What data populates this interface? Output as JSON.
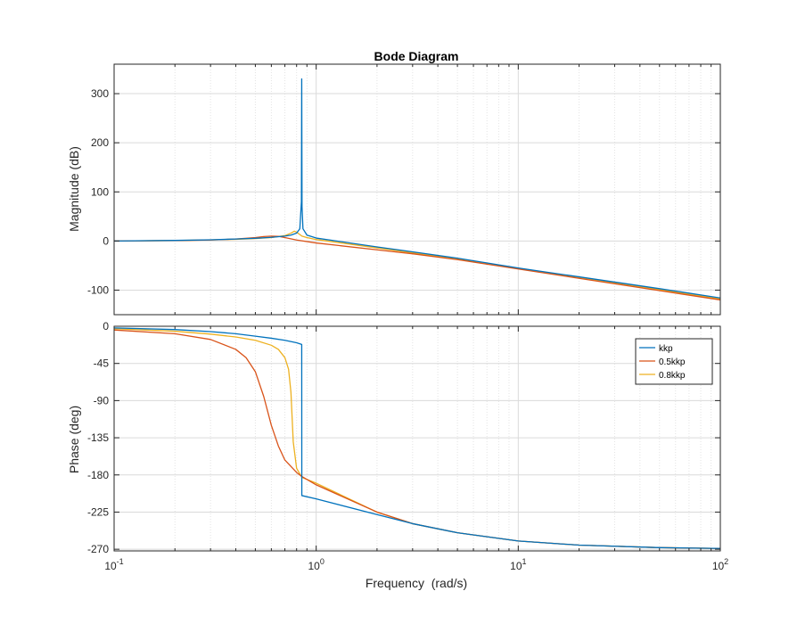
{
  "chart_data": {
    "type": "line",
    "title": "Bode Diagram",
    "xlabel": "Frequency  (rad/s)",
    "xscale": "log",
    "xlim": [
      0.1,
      100
    ],
    "x_tick_labels": [
      {
        "base": "10",
        "exp": "-1"
      },
      {
        "base": "10",
        "exp": "0"
      },
      {
        "base": "10",
        "exp": "1"
      },
      {
        "base": "10",
        "exp": "2"
      }
    ],
    "grid": true,
    "minor_grid": true,
    "legend": {
      "location": "top-right",
      "panel": "phase"
    },
    "series_colors": [
      "#0072BD",
      "#D95319",
      "#EDB120"
    ],
    "panels": [
      {
        "id": "magnitude",
        "ylabel": "Magnitude (dB)",
        "ylim": [
          -150,
          360
        ],
        "yticks": [
          300,
          200,
          100,
          0,
          -100
        ],
        "series": [
          {
            "name": "kkp",
            "points": [
              [
                0.1,
                0
              ],
              [
                0.2,
                1.2
              ],
              [
                0.3,
                2.5
              ],
              [
                0.4,
                4
              ],
              [
                0.5,
                5.5
              ],
              [
                0.6,
                7.5
              ],
              [
                0.7,
                10
              ],
              [
                0.75,
                12
              ],
              [
                0.8,
                16
              ],
              [
                0.83,
                25
              ],
              [
                0.845,
                80
              ],
              [
                0.848,
                330
              ],
              [
                0.851,
                70
              ],
              [
                0.86,
                25
              ],
              [
                0.9,
                12
              ],
              [
                1,
                6
              ],
              [
                2,
                -12
              ],
              [
                3,
                -22
              ],
              [
                5,
                -35
              ],
              [
                10,
                -55
              ],
              [
                20,
                -73
              ],
              [
                50,
                -97
              ],
              [
                100,
                -116
              ]
            ]
          },
          {
            "name": "0.5kkp",
            "points": [
              [
                0.1,
                0
              ],
              [
                0.2,
                0.8
              ],
              [
                0.3,
                2
              ],
              [
                0.4,
                4
              ],
              [
                0.5,
                7
              ],
              [
                0.55,
                9
              ],
              [
                0.6,
                10
              ],
              [
                0.65,
                9.5
              ],
              [
                0.7,
                7
              ],
              [
                0.8,
                2
              ],
              [
                1,
                -4
              ],
              [
                2,
                -18
              ],
              [
                3,
                -26
              ],
              [
                5,
                -38
              ],
              [
                10,
                -57
              ],
              [
                20,
                -76
              ],
              [
                50,
                -101
              ],
              [
                100,
                -120
              ]
            ]
          },
          {
            "name": "0.8kkp",
            "points": [
              [
                0.1,
                0
              ],
              [
                0.2,
                1
              ],
              [
                0.3,
                2.2
              ],
              [
                0.4,
                3.5
              ],
              [
                0.5,
                5
              ],
              [
                0.6,
                7
              ],
              [
                0.7,
                11
              ],
              [
                0.75,
                16
              ],
              [
                0.78,
                20
              ],
              [
                0.8,
                18
              ],
              [
                0.85,
                10
              ],
              [
                0.9,
                7
              ],
              [
                1,
                3
              ],
              [
                2,
                -14
              ],
              [
                3,
                -24
              ],
              [
                5,
                -36
              ],
              [
                10,
                -56
              ],
              [
                20,
                -74
              ],
              [
                50,
                -99
              ],
              [
                100,
                -118
              ]
            ]
          }
        ]
      },
      {
        "id": "phase",
        "ylabel": "Phase (deg)",
        "ylim": [
          -272,
          0
        ],
        "yticks": [
          0,
          -45,
          -90,
          -135,
          -180,
          -225,
          -270
        ],
        "series": [
          {
            "name": "kkp",
            "points": [
              [
                0.1,
                -2
              ],
              [
                0.2,
                -4
              ],
              [
                0.3,
                -6.5
              ],
              [
                0.4,
                -9
              ],
              [
                0.5,
                -12
              ],
              [
                0.6,
                -14.5
              ],
              [
                0.7,
                -17
              ],
              [
                0.8,
                -20
              ],
              [
                0.848,
                -22
              ],
              [
                0.849,
                -205
              ],
              [
                1,
                -209
              ],
              [
                2,
                -228
              ],
              [
                3,
                -239
              ],
              [
                5,
                -250
              ],
              [
                10,
                -260
              ],
              [
                20,
                -265
              ],
              [
                50,
                -268
              ],
              [
                100,
                -269
              ]
            ]
          },
          {
            "name": "0.5kkp",
            "points": [
              [
                0.1,
                -4.5
              ],
              [
                0.2,
                -9
              ],
              [
                0.3,
                -16
              ],
              [
                0.4,
                -28
              ],
              [
                0.45,
                -38
              ],
              [
                0.5,
                -55
              ],
              [
                0.55,
                -85
              ],
              [
                0.6,
                -120
              ],
              [
                0.65,
                -145
              ],
              [
                0.7,
                -162
              ],
              [
                0.8,
                -177
              ],
              [
                0.85,
                -182
              ],
              [
                1,
                -192
              ],
              [
                2,
                -225
              ],
              [
                3,
                -239
              ],
              [
                5,
                -250
              ],
              [
                10,
                -260
              ],
              [
                20,
                -265
              ],
              [
                50,
                -268
              ],
              [
                100,
                -269
              ]
            ]
          },
          {
            "name": "0.8kkp",
            "points": [
              [
                0.1,
                -3
              ],
              [
                0.2,
                -6
              ],
              [
                0.3,
                -9.5
              ],
              [
                0.4,
                -13
              ],
              [
                0.5,
                -17
              ],
              [
                0.6,
                -23
              ],
              [
                0.65,
                -28
              ],
              [
                0.7,
                -38
              ],
              [
                0.73,
                -52
              ],
              [
                0.75,
                -80
              ],
              [
                0.77,
                -140
              ],
              [
                0.8,
                -172
              ],
              [
                0.85,
                -183
              ],
              [
                1,
                -190
              ],
              [
                2,
                -225
              ],
              [
                3,
                -239
              ],
              [
                5,
                -250
              ],
              [
                10,
                -260
              ],
              [
                20,
                -265
              ],
              [
                50,
                -268
              ],
              [
                100,
                -269
              ]
            ]
          }
        ]
      }
    ]
  }
}
